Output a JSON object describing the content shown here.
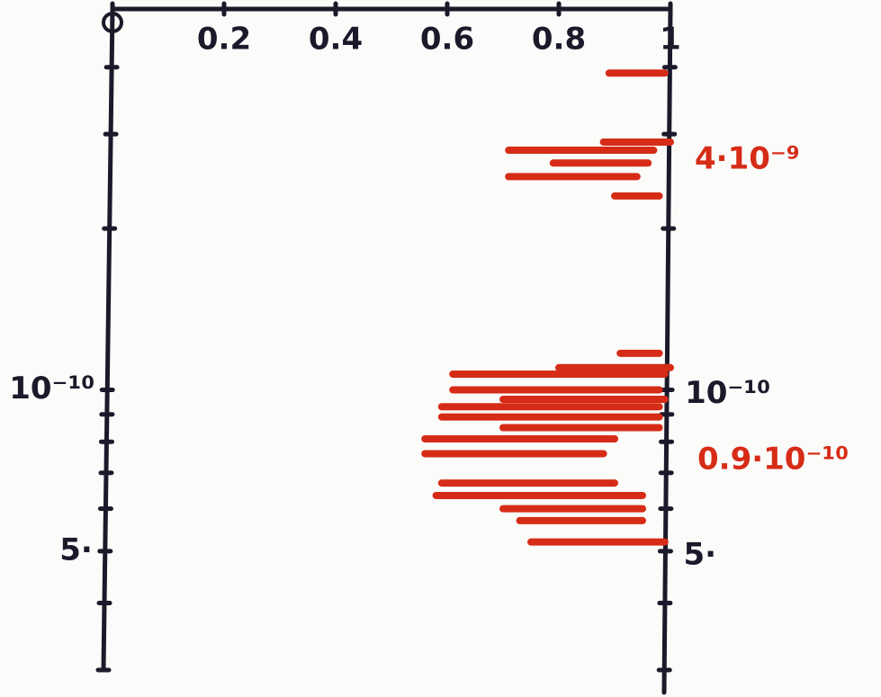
{
  "chart_data": {
    "type": "segments",
    "xlim": [
      0,
      1
    ],
    "xticks": [
      0,
      0.2,
      0.4,
      0.6,
      0.8,
      1
    ],
    "ylim": [
      3e-11,
      5e-10
    ],
    "log_y": true,
    "yticks": [
      4e-10,
      3e-10,
      2e-10,
      {
        "value": 1e-10,
        "label": "10⁻¹⁰"
      },
      9e-11,
      8e-11,
      7e-11,
      6e-11,
      {
        "value": 5e-11,
        "label": "5·"
      },
      4e-11,
      3e-11
    ],
    "color": "#d62c17",
    "segments": [
      {
        "x": [
          0.89,
          0.99
        ],
        "y": 3.9e-10
      },
      {
        "x": [
          0.88,
          1.0
        ],
        "y": 2.9e-10
      },
      {
        "x": [
          0.71,
          0.97
        ],
        "y": 2.8e-10
      },
      {
        "x": [
          0.79,
          0.96
        ],
        "y": 2.65e-10
      },
      {
        "x": [
          0.71,
          0.94
        ],
        "y": 2.5e-10
      },
      {
        "x": [
          0.9,
          0.98
        ],
        "y": 2.3e-10
      },
      {
        "x": [
          0.91,
          0.98
        ],
        "y": 1.17e-10
      },
      {
        "x": [
          0.8,
          1.0
        ],
        "y": 1.1e-10
      },
      {
        "x": [
          0.61,
          0.99
        ],
        "y": 1.07e-10
      },
      {
        "x": [
          0.61,
          0.98
        ],
        "y": 1e-10
      },
      {
        "x": [
          0.7,
          0.99
        ],
        "y": 9.6e-11
      },
      {
        "x": [
          0.59,
          0.98
        ],
        "y": 9.3e-11
      },
      {
        "x": [
          0.59,
          0.98
        ],
        "y": 8.9e-11
      },
      {
        "x": [
          0.7,
          0.98
        ],
        "y": 8.5e-11
      },
      {
        "x": [
          0.56,
          0.9
        ],
        "y": 8.1e-11
      },
      {
        "x": [
          0.56,
          0.88
        ],
        "y": 7.6e-11
      },
      {
        "x": [
          0.59,
          0.9
        ],
        "y": 6.7e-11
      },
      {
        "x": [
          0.58,
          0.95
        ],
        "y": 6.35e-11
      },
      {
        "x": [
          0.7,
          0.95
        ],
        "y": 6e-11
      },
      {
        "x": [
          0.73,
          0.95
        ],
        "y": 5.7e-11
      },
      {
        "x": [
          0.75,
          0.99
        ],
        "y": 5.2e-11
      }
    ],
    "annotations": [
      "4·10⁻⁹",
      "0.9·10⁻¹⁰"
    ]
  }
}
